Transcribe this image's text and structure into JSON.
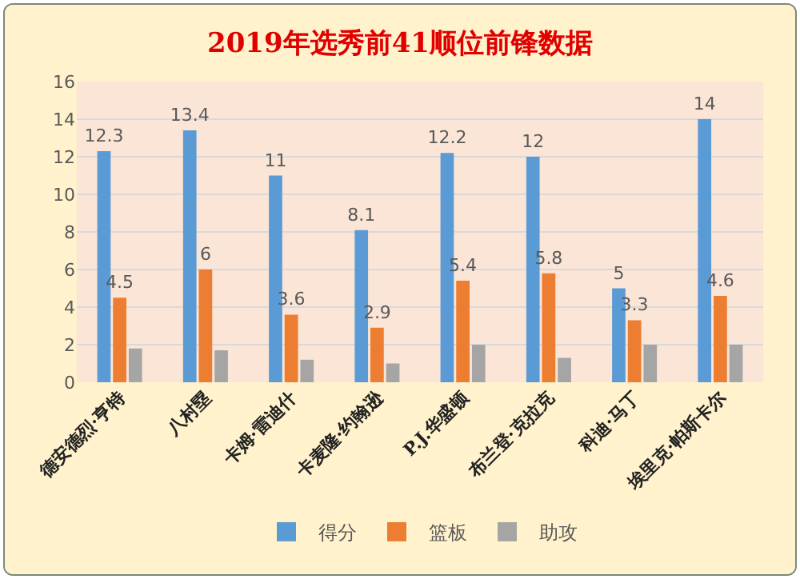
{
  "chart_data": {
    "type": "bar",
    "title": "2019年选秀前41顺位前锋数据",
    "categories": [
      "德安德烈·亨特",
      "八村塁",
      "卡姆·雷迪什",
      "卡麦隆·约翰逊",
      "P.J.华盛顿",
      "布兰登·克拉克",
      "科迪·马丁",
      "埃里克·帕斯卡尔"
    ],
    "series": [
      {
        "name": "得分",
        "color": "#5b9bd5",
        "values": [
          12.3,
          13.4,
          11,
          8.1,
          12.2,
          12,
          5,
          14
        ],
        "value_labels": [
          "12.3",
          "13.4",
          "11",
          "8.1",
          "12.2",
          "12",
          "5",
          "14"
        ]
      },
      {
        "name": "篮板",
        "color": "#ed7d31",
        "values": [
          4.5,
          6,
          3.6,
          2.9,
          5.4,
          5.8,
          3.3,
          4.6
        ],
        "value_labels": [
          "4.5",
          "6",
          "3.6",
          "2.9",
          "5.4",
          "5.8",
          "3.3",
          "4.6"
        ]
      },
      {
        "name": "助攻",
        "color": "#a5a5a5",
        "values": [
          1.8,
          1.7,
          1.2,
          1.0,
          2.0,
          1.3,
          2.0,
          2.0
        ]
      }
    ],
    "ylim": [
      0,
      16
    ],
    "yticks": [
      0,
      2,
      4,
      6,
      8,
      10,
      12,
      14,
      16
    ],
    "grid": "y",
    "legend": "bottom"
  }
}
